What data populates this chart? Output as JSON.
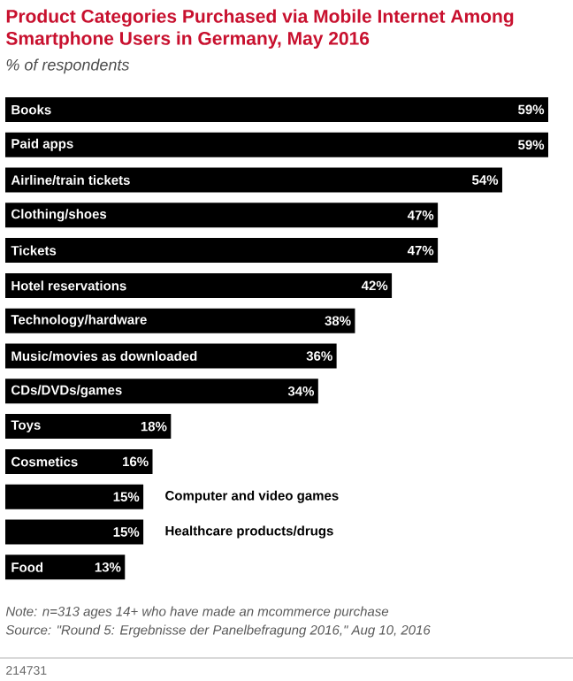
{
  "chart_data": {
    "type": "bar",
    "orientation": "horizontal",
    "title": "Product Categories Purchased via Mobile Internet Among Smartphone Users in Germany, May 2016",
    "subtitle": "% of respondents",
    "categories": [
      "Books",
      "Paid apps",
      "Airline/train tickets",
      "Clothing/shoes",
      "Tickets",
      "Hotel reservations",
      "Technology/hardware",
      "Music/movies as downloaded",
      "CDs/DVDs/games",
      "Toys",
      "Cosmetics",
      "Computer and video games",
      "Healthcare products/drugs",
      "Food"
    ],
    "values": [
      59,
      59,
      54,
      47,
      47,
      42,
      38,
      36,
      34,
      18,
      16,
      15,
      15,
      13
    ],
    "value_labels": [
      "59%",
      "59%",
      "54%",
      "47%",
      "47%",
      "42%",
      "38%",
      "36%",
      "34%",
      "18%",
      "16%",
      "15%",
      "15%",
      "13%"
    ],
    "color": "#000000",
    "annotations": [
      "Note: n=313 ages 14+ who have made an mcommerce purchase",
      "Source: \"Round 5: Ergebnisse der Panelbefragung 2016,\" Aug 10, 2016",
      "214731"
    ]
  }
}
